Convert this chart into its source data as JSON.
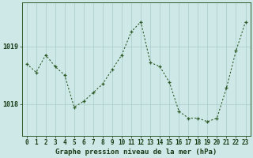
{
  "hours": [
    0,
    1,
    2,
    3,
    4,
    5,
    6,
    7,
    8,
    9,
    10,
    11,
    12,
    13,
    14,
    15,
    16,
    17,
    18,
    19,
    20,
    21,
    22,
    23
  ],
  "pressure": [
    1018.7,
    1018.55,
    1018.85,
    1018.65,
    1018.5,
    1017.95,
    1018.05,
    1018.2,
    1018.35,
    1018.6,
    1018.85,
    1019.25,
    1019.42,
    1018.72,
    1018.65,
    1018.38,
    1017.88,
    1017.76,
    1017.76,
    1017.7,
    1017.76,
    1018.28,
    1018.92,
    1019.42
  ],
  "line_color": "#2d5a27",
  "marker_color": "#2d5a27",
  "bg_color": "#cde8e6",
  "grid_color": "#a8cbca",
  "xlabel": "Graphe pression niveau de la mer (hPa)",
  "xlabel_color": "#1a3d18",
  "ytick_labels": [
    "1018",
    "1019"
  ],
  "ytick_positions": [
    1018.0,
    1019.0
  ],
  "ylim": [
    1017.45,
    1019.75
  ],
  "xlim": [
    -0.5,
    23.5
  ],
  "tick_color": "#1a3d18",
  "spine_color": "#2d5a27",
  "xlabel_fontsize": 6.5,
  "tick_fontsize": 5.5
}
